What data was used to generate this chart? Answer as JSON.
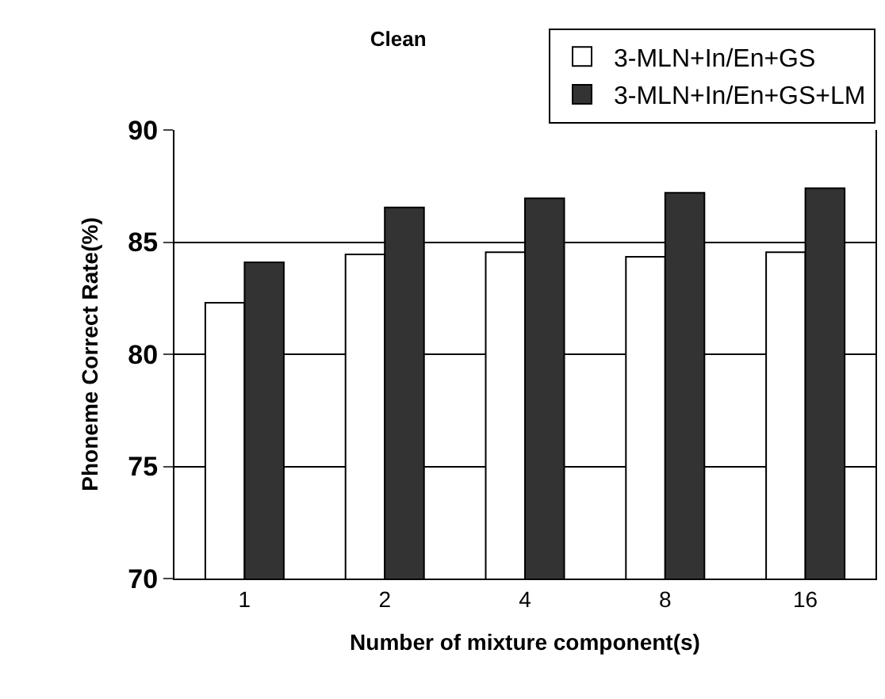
{
  "chart_data": {
    "type": "bar",
    "title": "Clean",
    "xlabel": "Number of mixture component(s)",
    "ylabel": "Phoneme Correct Rate(%)",
    "categories": [
      "1",
      "2",
      "4",
      "8",
      "16"
    ],
    "series": [
      {
        "name": "3-MLN+In/En+GS",
        "color": "#ffffff",
        "values": [
          82.3,
          84.45,
          84.55,
          84.35,
          84.55
        ]
      },
      {
        "name": "3-MLN+In/En+GS+LM",
        "color": "#333333",
        "values": [
          84.1,
          86.55,
          86.95,
          87.2,
          87.4
        ]
      }
    ],
    "ylim": [
      70,
      90
    ],
    "yticks": [
      70,
      75,
      80,
      85,
      90
    ],
    "grid": "y",
    "legend": "top right"
  }
}
